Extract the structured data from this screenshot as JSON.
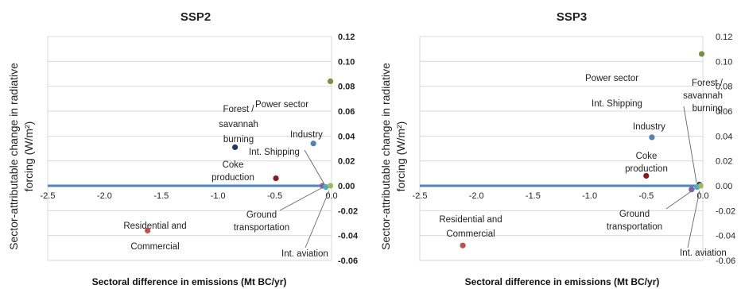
{
  "chart_data": [
    {
      "type": "scatter",
      "title": "SSP2",
      "xlabel": "Sectoral difference in emissions (Mt BC/yr)",
      "ylabel": "Sector-attributable change in radiative forcing (W/m²)",
      "xlim": [
        -2.5,
        0
      ],
      "ylim": [
        -0.06,
        0.12
      ],
      "xticks": [
        "-2.5",
        "-2.0",
        "-1.5",
        "-1.0",
        "-0.5",
        "0.0"
      ],
      "yticks": [
        "0.12",
        "0.10",
        "0.08",
        "0.06",
        "0.04",
        "0.02",
        "0.00",
        "-0.02",
        "-0.04",
        "-0.06"
      ],
      "grid": true,
      "points": [
        {
          "label": "Power sector",
          "x": -0.01,
          "y": 0.084,
          "color": "#76923c"
        },
        {
          "label": "Forest / savannah burning",
          "x": -0.85,
          "y": 0.031,
          "color": "#1f3864"
        },
        {
          "label": "Industry",
          "x": -0.16,
          "y": 0.034,
          "color": "#4f81bd"
        },
        {
          "label": "Coke production",
          "x": -0.49,
          "y": 0.006,
          "color": "#8b1a1a"
        },
        {
          "label": "Residential and Commercial",
          "x": -1.62,
          "y": -0.036,
          "color": "#c0504d"
        },
        {
          "label": "Int. Shipping",
          "x": -0.08,
          "y": 0.0,
          "color": "#8064a2"
        },
        {
          "label": "Ground transportation",
          "x": -0.05,
          "y": -0.001,
          "color": "#4bacc6"
        },
        {
          "label": "Int. aviation",
          "x": -0.01,
          "y": 0.0,
          "color": "#9bbb59"
        }
      ]
    },
    {
      "type": "scatter",
      "title": "SSP3",
      "xlabel": "Sectoral difference in emissions (Mt BC/yr)",
      "ylabel": "Sector-attributable change in radiative forcing (W/m²)",
      "xlim": [
        -2.5,
        0
      ],
      "ylim": [
        -0.06,
        0.12
      ],
      "xticks": [
        "-2.5",
        "-2.0",
        "-1.5",
        "-1.0",
        "-0.5",
        "0.0"
      ],
      "yticks": [
        "0.12",
        "0.10",
        "0.08",
        "0.06",
        "0.04",
        "0.02",
        "0.00",
        "-0.02",
        "-0.04",
        "-0.06"
      ],
      "grid": true,
      "points": [
        {
          "label": "Power sector",
          "x": -0.01,
          "y": 0.106,
          "color": "#76923c"
        },
        {
          "label": "Forest / savannah burning",
          "x": -0.03,
          "y": 0.001,
          "color": "#1f3864"
        },
        {
          "label": "Industry",
          "x": -0.45,
          "y": 0.039,
          "color": "#4f81bd"
        },
        {
          "label": "Coke production",
          "x": -0.5,
          "y": 0.008,
          "color": "#8b1a1a"
        },
        {
          "label": "Residential and Commercial",
          "x": -2.12,
          "y": -0.048,
          "color": "#c0504d"
        },
        {
          "label": "Int. Shipping",
          "x": -0.1,
          "y": -0.003,
          "color": "#8064a2"
        },
        {
          "label": "Ground transportation",
          "x": -0.05,
          "y": -0.001,
          "color": "#4bacc6"
        },
        {
          "label": "Int. aviation",
          "x": -0.02,
          "y": 0.0,
          "color": "#9bbb59"
        }
      ]
    }
  ],
  "annotations": [
    [
      [
        "Power sector"
      ],
      [
        "Forest /",
        "savannah",
        "burning"
      ],
      [
        "Industry"
      ],
      [
        "Coke",
        "production"
      ],
      [
        "Residential and",
        "Commercial"
      ],
      [
        "Int. Shipping"
      ],
      [
        "Ground",
        "transportation"
      ],
      [
        "Int. aviation"
      ]
    ],
    [
      [
        "Power sector"
      ],
      [
        "Forest /",
        "savannah",
        "burning"
      ],
      [
        "Industry"
      ],
      [
        "Coke",
        "production"
      ],
      [
        "Residential and",
        "Commercial"
      ],
      [
        "Int. Shipping"
      ],
      [
        "Ground",
        "transportation"
      ],
      [
        "Int. aviation"
      ]
    ]
  ]
}
